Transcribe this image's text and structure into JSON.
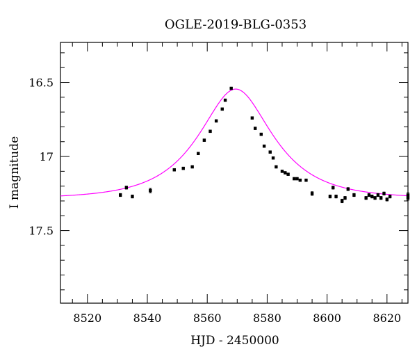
{
  "chart_data": {
    "type": "scatter",
    "title": "OGLE-2019-BLG-0353",
    "xlabel": "HJD - 2450000",
    "ylabel": "I magnitude",
    "xlim": [
      8511,
      8627
    ],
    "ylim": [
      17.99,
      16.23
    ],
    "y_inverted": true,
    "x_ticks": [
      "8520",
      "8540",
      "8560",
      "8580",
      "8600",
      "8620"
    ],
    "y_ticks": [
      "16.5",
      "17",
      "17.5"
    ],
    "grid": false,
    "colors": {
      "data": "#000000",
      "model": "#ff00ff",
      "axes": "#000000"
    },
    "series": [
      {
        "kind": "points_with_errorbars",
        "x": [
          8531,
          8533,
          8535,
          8541,
          8549,
          8552,
          8555,
          8557,
          8559,
          8561,
          8563,
          8565,
          8566,
          8568,
          8575,
          8576,
          8578,
          8579,
          8581,
          8582,
          8583,
          8585,
          8586,
          8587,
          8589,
          8590,
          8591,
          8593,
          8595,
          8601,
          8602,
          8603,
          8605,
          8606,
          8607,
          8609,
          8613,
          8614,
          8615,
          8616,
          8617,
          8618,
          8619,
          8620,
          8621,
          8627,
          8627
        ],
        "y": [
          17.26,
          17.21,
          17.27,
          17.23,
          17.09,
          17.08,
          17.07,
          16.98,
          16.89,
          16.83,
          16.76,
          16.68,
          16.62,
          16.54,
          16.74,
          16.81,
          16.85,
          16.93,
          16.97,
          17.01,
          17.07,
          17.1,
          17.11,
          17.12,
          17.15,
          17.15,
          17.16,
          17.16,
          17.25,
          17.27,
          17.21,
          17.27,
          17.3,
          17.28,
          17.22,
          17.26,
          17.28,
          17.26,
          17.27,
          17.28,
          17.26,
          17.28,
          17.25,
          17.29,
          17.27,
          17.28,
          17.26
        ],
        "yerr": [
          0.01,
          0.01,
          0.01,
          0.015,
          0.008,
          0.008,
          0.008,
          0.008,
          0.008,
          0.008,
          0.008,
          0.008,
          0.008,
          0.008,
          0.008,
          0.008,
          0.008,
          0.008,
          0.008,
          0.008,
          0.008,
          0.008,
          0.008,
          0.008,
          0.008,
          0.008,
          0.008,
          0.008,
          0.012,
          0.01,
          0.01,
          0.01,
          0.012,
          0.01,
          0.01,
          0.01,
          0.01,
          0.01,
          0.01,
          0.01,
          0.01,
          0.01,
          0.01,
          0.01,
          0.01,
          0.015,
          0.015
        ]
      },
      {
        "kind": "model_curve",
        "baseline_mag": 17.285,
        "peak_mag": 16.545,
        "t0": 8569.5,
        "x_range": [
          8511,
          8627
        ],
        "shape": "point-lens microlensing"
      }
    ]
  }
}
